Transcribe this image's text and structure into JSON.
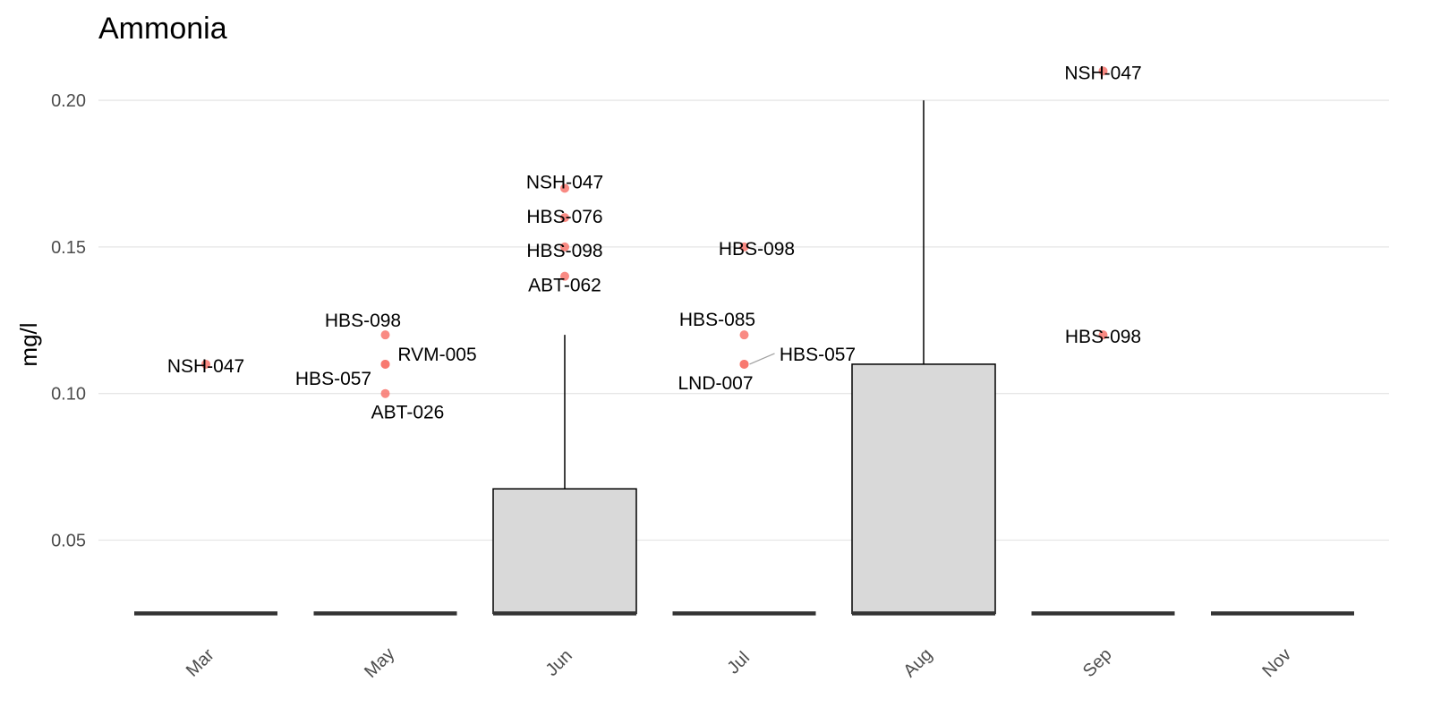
{
  "chart_data": {
    "type": "box",
    "title": "Ammonia",
    "xlabel": "",
    "ylabel": "mg/l",
    "ylim": [
      0.0175,
      0.222
    ],
    "yticks": [
      0.05,
      0.1,
      0.15,
      0.2
    ],
    "ytick_labels": [
      "0.05",
      "0.10",
      "0.15",
      "0.20"
    ],
    "grid": true,
    "categories": [
      "Mar",
      "May",
      "Jun",
      "Jul",
      "Aug",
      "Sep",
      "Nov"
    ],
    "boxes": [
      {
        "category": "Mar",
        "min": 0.025,
        "q1": 0.025,
        "median": 0.025,
        "q3": 0.025,
        "max": 0.025
      },
      {
        "category": "May",
        "min": 0.025,
        "q1": 0.025,
        "median": 0.025,
        "q3": 0.025,
        "max": 0.025
      },
      {
        "category": "Jun",
        "min": 0.025,
        "q1": 0.025,
        "median": 0.025,
        "q3": 0.0675,
        "max": 0.12
      },
      {
        "category": "Jul",
        "min": 0.025,
        "q1": 0.025,
        "median": 0.025,
        "q3": 0.025,
        "max": 0.025
      },
      {
        "category": "Aug",
        "min": 0.025,
        "q1": 0.025,
        "median": 0.025,
        "q3": 0.11,
        "max": 0.2
      },
      {
        "category": "Sep",
        "min": 0.025,
        "q1": 0.025,
        "median": 0.025,
        "q3": 0.025,
        "max": 0.025
      },
      {
        "category": "Nov",
        "min": 0.025,
        "q1": 0.025,
        "median": 0.025,
        "q3": 0.025,
        "max": 0.025
      }
    ],
    "outliers": [
      {
        "category": "Mar",
        "y": 0.11,
        "label": "NSH-047"
      },
      {
        "category": "May",
        "y": 0.12,
        "label": "HBS-098"
      },
      {
        "category": "May",
        "y": 0.11,
        "label": "RVM-005"
      },
      {
        "category": "May",
        "y": 0.11,
        "label": "HBS-057"
      },
      {
        "category": "May",
        "y": 0.1,
        "label": "ABT-026"
      },
      {
        "category": "Jun",
        "y": 0.17,
        "label": "NSH-047"
      },
      {
        "category": "Jun",
        "y": 0.16,
        "label": "HBS-076"
      },
      {
        "category": "Jun",
        "y": 0.15,
        "label": "HBS-098"
      },
      {
        "category": "Jun",
        "y": 0.14,
        "label": "ABT-062"
      },
      {
        "category": "Jul",
        "y": 0.15,
        "label": "HBS-098"
      },
      {
        "category": "Jul",
        "y": 0.12,
        "label": "HBS-085"
      },
      {
        "category": "Jul",
        "y": 0.11,
        "label": "HBS-057"
      },
      {
        "category": "Jul",
        "y": 0.11,
        "label": "LND-007"
      },
      {
        "category": "Sep",
        "y": 0.21,
        "label": "NSH-047"
      },
      {
        "category": "Sep",
        "y": 0.12,
        "label": "HBS-098"
      }
    ],
    "colors": {
      "box_fill": "#d9d9d9",
      "box_line": "#000000",
      "median_line": "#333333",
      "point": "#f8766d",
      "grid": "#e6e6e6"
    }
  }
}
